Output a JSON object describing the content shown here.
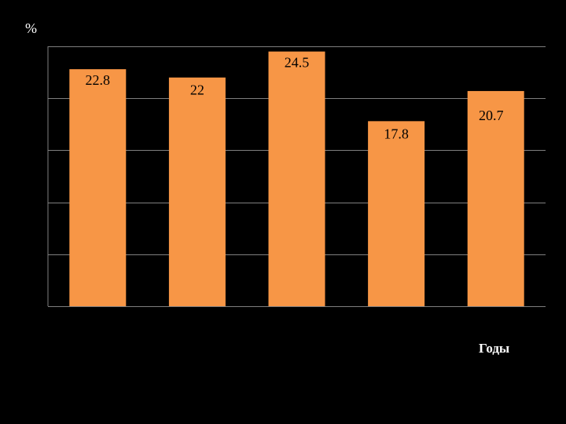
{
  "chart_data": {
    "type": "bar",
    "title": "",
    "xlabel": "Годы",
    "ylabel": "%",
    "values": [
      22.8,
      22,
      24.5,
      17.8,
      20.7
    ],
    "data_labels": [
      "22.8",
      "22",
      "24.5",
      "17.8",
      "20.7"
    ],
    "ylim": [
      0,
      25
    ],
    "grid": true,
    "legend": "none",
    "colors": {
      "background": "#000000",
      "bar": "#F79646",
      "grid": "#7f7f7f",
      "label": "#000000"
    }
  }
}
